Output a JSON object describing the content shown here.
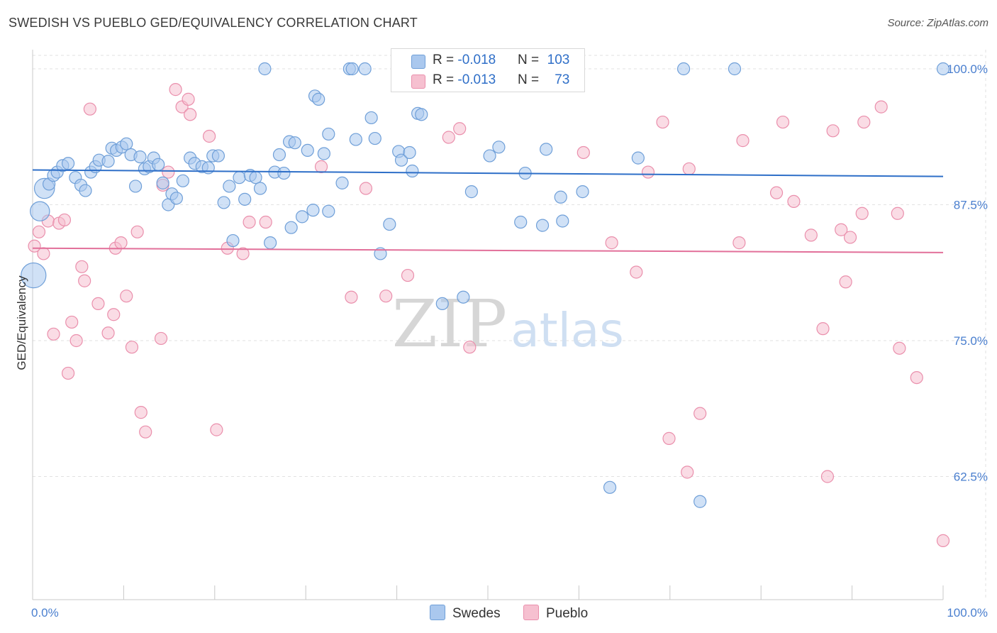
{
  "title": "SWEDISH VS PUEBLO GED/EQUIVALENCY CORRELATION CHART",
  "source": "Source: ZipAtlas.com",
  "watermark": {
    "zip": "ZIP",
    "atlas": "atlas"
  },
  "legend": {
    "rows": [
      {
        "r_label": "R = ",
        "r_value": "-0.018",
        "n_label": "N = ",
        "n_value": "103"
      },
      {
        "r_label": "R = ",
        "r_value": "-0.013",
        "n_label": "N = ",
        "n_value": "73"
      }
    ]
  },
  "bottom_legend": [
    "Swedes",
    "Pueblo"
  ],
  "colors": {
    "swedes_fill": "#aac8ee",
    "swedes_stroke": "#6f9fd8",
    "swedes_line": "#2e6fc8",
    "pueblo_fill": "#f6c0d0",
    "pueblo_stroke": "#ea8fac",
    "pueblo_line": "#e2709a",
    "tick_text": "#4a7fcf",
    "grid": "#e2e2e2"
  },
  "chart_data": {
    "type": "scatter",
    "title": "SWEDISH VS PUEBLO GED/EQUIVALENCY CORRELATION CHART",
    "xlabel": "",
    "ylabel": "GED/Equivalency",
    "xlim": [
      0,
      100
    ],
    "ylim": [
      51.5,
      101.5
    ],
    "x_ticks": [
      0,
      100
    ],
    "x_tick_labels": [
      "0.0%",
      "100.0%"
    ],
    "y_ticks": [
      100,
      87.5,
      75,
      62.5
    ],
    "y_tick_labels": [
      "100.0%",
      "87.5%",
      "75.0%",
      "62.5%"
    ],
    "grid": true,
    "legend_position": "top-center",
    "series": [
      {
        "name": "Swedes",
        "R": -0.018,
        "N": 103,
        "trend": [
          [
            0,
            90.7
          ],
          [
            100,
            90.1
          ]
        ],
        "points": [
          [
            1.3,
            89.0,
            2.5
          ],
          [
            0.8,
            86.9,
            2.4
          ],
          [
            0.1,
            81.0,
            3.1
          ],
          [
            1.8,
            89.4,
            1.5
          ],
          [
            2.3,
            90.2,
            1.5
          ],
          [
            2.7,
            90.5,
            1.5
          ],
          [
            3.3,
            91.1,
            1.5
          ],
          [
            3.9,
            91.3,
            1.5
          ],
          [
            4.7,
            90.0,
            1.5
          ],
          [
            5.3,
            89.3,
            1.5
          ],
          [
            5.8,
            88.8,
            1.5
          ],
          [
            6.4,
            90.5,
            1.5
          ],
          [
            6.9,
            91.0,
            1.5
          ],
          [
            7.3,
            91.6,
            1.5
          ],
          [
            8.3,
            91.5,
            1.5
          ],
          [
            8.7,
            92.7,
            1.5
          ],
          [
            9.2,
            92.5,
            1.5
          ],
          [
            9.8,
            92.8,
            1.5
          ],
          [
            10.3,
            93.1,
            1.5
          ],
          [
            10.8,
            92.1,
            1.5
          ],
          [
            11.3,
            89.2,
            1.5
          ],
          [
            11.8,
            91.9,
            1.5
          ],
          [
            12.3,
            90.8,
            1.5
          ],
          [
            12.8,
            91.0,
            1.5
          ],
          [
            13.3,
            91.8,
            1.5
          ],
          [
            13.8,
            91.2,
            1.5
          ],
          [
            14.3,
            89.5,
            1.5
          ],
          [
            14.9,
            87.5,
            1.5
          ],
          [
            15.3,
            88.5,
            1.5
          ],
          [
            15.8,
            88.1,
            1.5
          ],
          [
            16.5,
            89.7,
            1.5
          ],
          [
            17.3,
            91.8,
            1.5
          ],
          [
            17.8,
            91.3,
            1.5
          ],
          [
            18.6,
            91.0,
            1.5
          ],
          [
            19.3,
            90.9,
            1.5
          ],
          [
            19.8,
            92.0,
            1.5
          ],
          [
            20.4,
            92.0,
            1.5
          ],
          [
            21.0,
            87.7,
            1.5
          ],
          [
            21.6,
            89.2,
            1.5
          ],
          [
            22.0,
            84.2,
            1.5
          ],
          [
            22.7,
            90.0,
            1.5
          ],
          [
            23.3,
            88.0,
            1.5
          ],
          [
            23.9,
            90.2,
            1.5
          ],
          [
            24.5,
            90.0,
            1.5
          ],
          [
            25.0,
            89.0,
            1.5
          ],
          [
            25.5,
            100.0,
            1.5
          ],
          [
            26.1,
            84.0,
            1.5
          ],
          [
            26.6,
            90.5,
            1.5
          ],
          [
            27.1,
            92.1,
            1.5
          ],
          [
            27.6,
            90.4,
            1.5
          ],
          [
            28.2,
            93.3,
            1.5
          ],
          [
            28.8,
            93.2,
            1.5
          ],
          [
            28.4,
            85.4,
            1.5
          ],
          [
            29.6,
            86.4,
            1.5
          ],
          [
            30.2,
            92.5,
            1.5
          ],
          [
            30.8,
            87.0,
            1.5
          ],
          [
            31.0,
            97.5,
            1.5
          ],
          [
            31.4,
            97.2,
            1.5
          ],
          [
            32.0,
            92.2,
            1.5
          ],
          [
            32.5,
            94.0,
            1.5
          ],
          [
            32.5,
            86.9,
            1.5
          ],
          [
            34.0,
            89.5,
            1.5
          ],
          [
            34.8,
            100.0,
            1.5
          ],
          [
            35.1,
            100.0,
            1.5
          ],
          [
            35.5,
            93.5,
            1.5
          ],
          [
            36.5,
            100.0,
            1.5
          ],
          [
            37.2,
            95.5,
            1.5
          ],
          [
            37.6,
            93.6,
            1.5
          ],
          [
            38.2,
            83.0,
            1.5
          ],
          [
            39.2,
            85.7,
            1.5
          ],
          [
            40.2,
            92.4,
            1.5
          ],
          [
            40.5,
            91.6,
            1.5
          ],
          [
            40.8,
            100.0,
            1.5
          ],
          [
            41.4,
            92.3,
            1.5
          ],
          [
            41.7,
            90.6,
            1.5
          ],
          [
            42.3,
            95.9,
            1.5
          ],
          [
            42.7,
            95.8,
            1.5
          ],
          [
            45.0,
            78.4,
            1.5
          ],
          [
            46.1,
            100.0,
            1.5
          ],
          [
            47.3,
            100.0,
            1.5
          ],
          [
            47.3,
            79.0,
            1.5
          ],
          [
            48.2,
            88.7,
            1.5
          ],
          [
            50.2,
            92.0,
            1.5
          ],
          [
            51.2,
            92.8,
            1.5
          ],
          [
            53.6,
            85.9,
            1.5
          ],
          [
            54.1,
            90.4,
            1.5
          ],
          [
            56.0,
            85.6,
            1.5
          ],
          [
            56.4,
            92.6,
            1.5
          ],
          [
            58.0,
            88.2,
            1.5
          ],
          [
            58.2,
            86.0,
            1.5
          ],
          [
            60.4,
            88.7,
            1.5
          ],
          [
            63.4,
            61.5,
            1.5
          ],
          [
            66.5,
            91.8,
            1.5
          ],
          [
            71.5,
            100.0,
            1.5
          ],
          [
            73.3,
            60.2,
            1.5
          ],
          [
            77.1,
            100.0,
            1.5
          ],
          [
            100.0,
            100.0,
            1.5
          ]
        ]
      },
      {
        "name": "Pueblo",
        "R": -0.013,
        "N": 73,
        "trend": [
          [
            0,
            83.5
          ],
          [
            100,
            83.1
          ]
        ],
        "points": [
          [
            0.2,
            83.7,
            1.5
          ],
          [
            0.7,
            85.0,
            1.5
          ],
          [
            1.2,
            83.0,
            1.5
          ],
          [
            1.7,
            86.0,
            1.5
          ],
          [
            2.3,
            75.6,
            1.5
          ],
          [
            2.9,
            85.8,
            1.5
          ],
          [
            3.5,
            86.1,
            1.5
          ],
          [
            3.9,
            72.0,
            1.5
          ],
          [
            4.3,
            76.7,
            1.5
          ],
          [
            4.8,
            75.0,
            1.5
          ],
          [
            5.4,
            81.8,
            1.5
          ],
          [
            5.7,
            80.5,
            1.5
          ],
          [
            6.3,
            96.3,
            1.5
          ],
          [
            7.2,
            78.4,
            1.5
          ],
          [
            8.3,
            75.7,
            1.5
          ],
          [
            8.9,
            77.4,
            1.5
          ],
          [
            9.1,
            83.5,
            1.5
          ],
          [
            9.7,
            84.0,
            1.5
          ],
          [
            10.3,
            79.1,
            1.5
          ],
          [
            10.9,
            74.4,
            1.5
          ],
          [
            11.5,
            85.0,
            1.5
          ],
          [
            11.9,
            68.4,
            1.5
          ],
          [
            12.4,
            66.6,
            1.5
          ],
          [
            14.1,
            75.2,
            1.5
          ],
          [
            14.3,
            89.3,
            1.5
          ],
          [
            14.9,
            90.5,
            1.5
          ],
          [
            15.7,
            98.1,
            1.5
          ],
          [
            16.4,
            96.5,
            1.5
          ],
          [
            17.1,
            97.2,
            1.5
          ],
          [
            17.3,
            95.8,
            1.5
          ],
          [
            19.4,
            93.8,
            1.5
          ],
          [
            20.2,
            66.8,
            1.5
          ],
          [
            21.4,
            83.5,
            1.5
          ],
          [
            23.1,
            83.0,
            1.5
          ],
          [
            23.8,
            85.9,
            1.5
          ],
          [
            25.6,
            85.9,
            1.5
          ],
          [
            31.7,
            91.0,
            1.5
          ],
          [
            35.0,
            79.0,
            1.5
          ],
          [
            36.6,
            89.0,
            1.5
          ],
          [
            38.8,
            79.1,
            1.5
          ],
          [
            41.2,
            81.0,
            1.5
          ],
          [
            45.7,
            93.7,
            1.5
          ],
          [
            46.9,
            94.5,
            1.5
          ],
          [
            48.0,
            74.4,
            1.5
          ],
          [
            60.5,
            92.3,
            1.5
          ],
          [
            63.6,
            84.0,
            1.5
          ],
          [
            66.3,
            81.3,
            1.5
          ],
          [
            67.6,
            90.5,
            1.5
          ],
          [
            69.2,
            95.1,
            1.5
          ],
          [
            69.9,
            66.0,
            1.5
          ],
          [
            72.1,
            90.8,
            1.5
          ],
          [
            71.9,
            62.9,
            1.5
          ],
          [
            73.3,
            68.3,
            1.5
          ],
          [
            77.6,
            84.0,
            1.5
          ],
          [
            78.0,
            93.4,
            1.5
          ],
          [
            81.7,
            88.6,
            1.5
          ],
          [
            82.4,
            95.1,
            1.5
          ],
          [
            83.6,
            87.8,
            1.5
          ],
          [
            85.5,
            84.7,
            1.5
          ],
          [
            86.8,
            76.1,
            1.5
          ],
          [
            87.3,
            62.5,
            1.5
          ],
          [
            87.9,
            94.3,
            1.5
          ],
          [
            88.8,
            85.2,
            1.5
          ],
          [
            89.3,
            80.4,
            1.5
          ],
          [
            89.8,
            84.5,
            1.5
          ],
          [
            91.1,
            86.7,
            1.5
          ],
          [
            91.3,
            95.1,
            1.5
          ],
          [
            93.2,
            96.5,
            1.5
          ],
          [
            95.0,
            86.7,
            1.5
          ],
          [
            95.2,
            74.3,
            1.5
          ],
          [
            97.1,
            71.6,
            1.5
          ],
          [
            100.0,
            56.6,
            1.5
          ]
        ]
      }
    ]
  }
}
